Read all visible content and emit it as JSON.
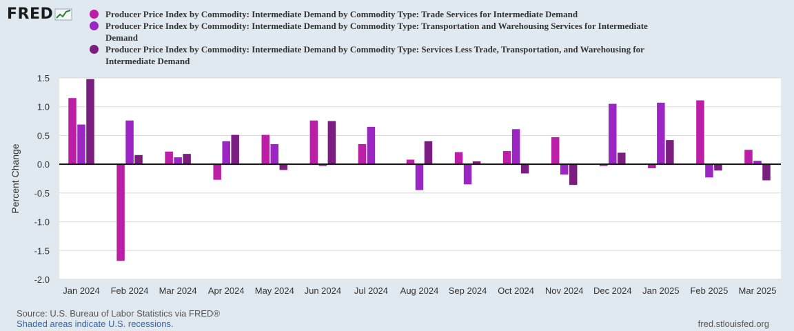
{
  "logo": {
    "text": "FRED"
  },
  "footer": {
    "source": "Source: U.S. Bureau of Labor Statistics via FRED®",
    "shaded": "Shaded areas indicate U.S. recessions.",
    "url": "fred.stlouisfed.org"
  },
  "chart_data": {
    "type": "bar",
    "title": "",
    "xlabel": "",
    "ylabel": "Percent Change",
    "ylim": [
      -2.0,
      1.5
    ],
    "yticks": [
      "1.5",
      "1.0",
      "0.5",
      "0.0",
      "-0.5",
      "-1.0",
      "-1.5",
      "-2.0"
    ],
    "grid": true,
    "legend_position": "top",
    "categories": [
      "Jan 2024",
      "Feb 2024",
      "Mar 2024",
      "Apr 2024",
      "May 2024",
      "Jun 2024",
      "Jul 2024",
      "Aug 2024",
      "Sep 2024",
      "Oct 2024",
      "Nov 2024",
      "Dec 2024",
      "Jan 2025",
      "Feb 2025",
      "Mar 2025"
    ],
    "series": [
      {
        "name": "Producer Price Index by Commodity: Intermediate Demand by Commodity Type: Trade Services for Intermediate Demand",
        "legend_lines": [
          "Producer Price Index by Commodity: Intermediate Demand by Commodity Type: Trade Services for Intermediate Demand"
        ],
        "color": "#bb1fa6",
        "values": [
          1.15,
          -1.68,
          0.22,
          -0.27,
          0.51,
          0.76,
          0.35,
          0.08,
          0.21,
          0.23,
          0.47,
          -0.03,
          -0.07,
          1.11,
          0.25
        ]
      },
      {
        "name": "Producer Price Index by Commodity: Intermediate Demand by Commodity Type: Transportation and Warehousing Services for Intermediate Demand",
        "legend_lines": [
          "Producer Price Index by Commodity: Intermediate Demand by Commodity Type: Transportation and Warehousing Services for Intermediate",
          "Demand"
        ],
        "color": "#9b26c4",
        "values": [
          0.69,
          0.76,
          0.12,
          0.4,
          0.35,
          -0.03,
          0.65,
          -0.45,
          -0.35,
          0.61,
          -0.18,
          1.05,
          1.07,
          -0.23,
          0.06
        ]
      },
      {
        "name": "Producer Price Index by Commodity: Intermediate Demand by Commodity Type: Services Less Trade, Transportation, and Warehousing for Intermediate Demand",
        "legend_lines": [
          "Producer Price Index by Commodity: Intermediate Demand by Commodity Type: Services Less Trade, Transportation, and Warehousing for",
          "Intermediate Demand"
        ],
        "color": "#7a1f7f",
        "values": [
          1.48,
          0.16,
          0.18,
          0.51,
          -0.1,
          0.75,
          null,
          0.4,
          0.05,
          -0.16,
          -0.36,
          0.2,
          0.42,
          -0.11,
          -0.28
        ]
      }
    ]
  }
}
